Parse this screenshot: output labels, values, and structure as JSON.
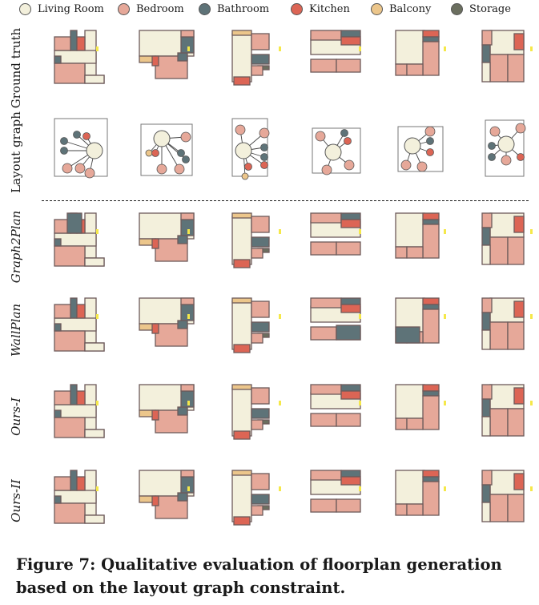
{
  "legend": [
    {
      "label": "Living Room",
      "color": "#f3f0dc"
    },
    {
      "label": "Bedroom",
      "color": "#e6a899"
    },
    {
      "label": "Bathroom",
      "color": "#5e7378"
    },
    {
      "label": "Kitchen",
      "color": "#dc6555"
    },
    {
      "label": "Balcony",
      "color": "#ecc68b"
    },
    {
      "label": "Storage",
      "color": "#6b6f5f"
    }
  ],
  "rows": [
    {
      "label": "Ground truth",
      "italic": false
    },
    {
      "label": "Layout graph",
      "italic": false
    },
    {
      "label": "Graph2Plan",
      "italic": true
    },
    {
      "label": "WallPlan",
      "italic": true
    },
    {
      "label": "Ours-I",
      "italic": true
    },
    {
      "label": "Ours-II",
      "italic": true
    }
  ],
  "caption": "Figure 7: Qualitative evaluation of floorplan generation based on the layout graph constraint.",
  "figure_data": {
    "floorplan_rows": [
      "Ground truth",
      "Graph2Plan",
      "WallPlan",
      "Ours-I",
      "Ours-II"
    ],
    "graph_row": "Layout graph",
    "room_types": [
      "Living Room",
      "Bedroom",
      "Bathroom",
      "Kitchen",
      "Balcony",
      "Storage"
    ]
  }
}
